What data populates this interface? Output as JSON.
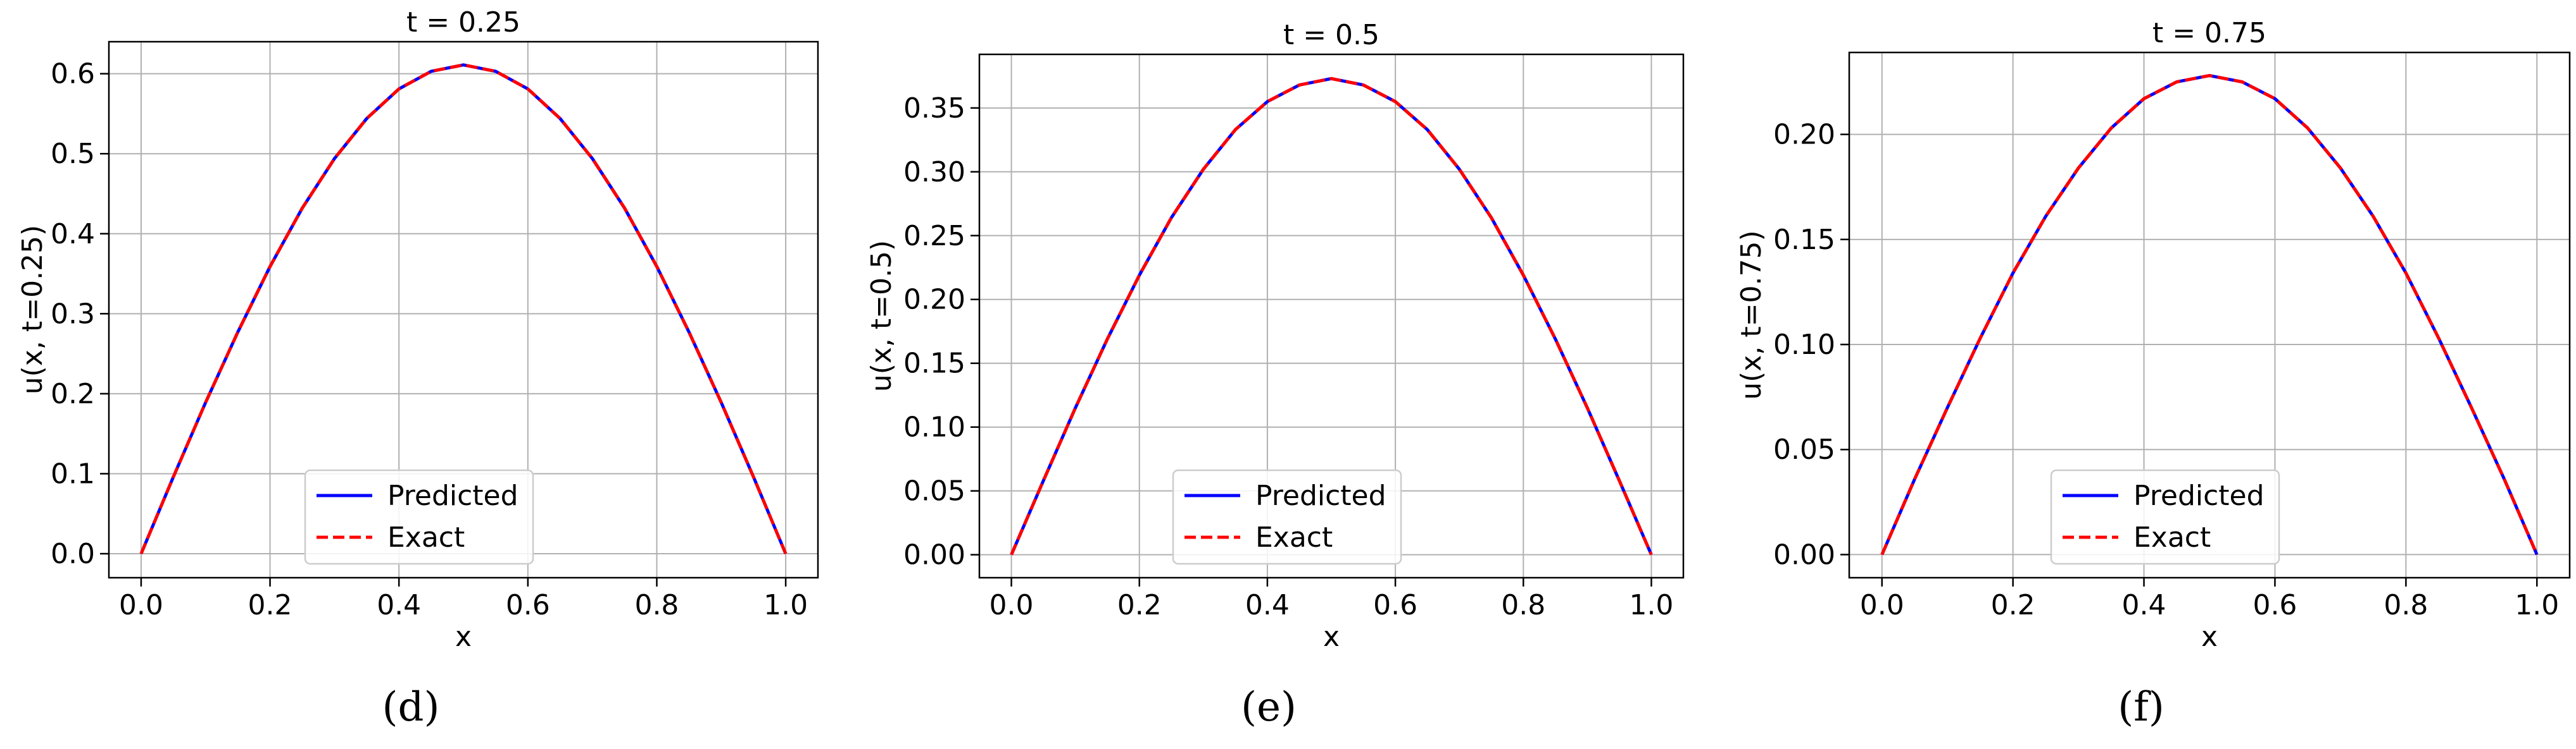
{
  "chart_data": [
    {
      "type": "line",
      "title": "t = 0.25",
      "xlabel": "x",
      "ylabel": "u(x, t=0.25)",
      "caption": "(d)",
      "xlim": [
        -0.05,
        1.05
      ],
      "ylim": [
        -0.03,
        0.64
      ],
      "xticks": [
        0.0,
        0.2,
        0.4,
        0.6,
        0.8,
        1.0
      ],
      "xtick_labels": [
        "0.0",
        "0.2",
        "0.4",
        "0.6",
        "0.8",
        "1.0"
      ],
      "yticks": [
        0.0,
        0.1,
        0.2,
        0.3,
        0.4,
        0.5,
        0.6
      ],
      "ytick_labels": [
        "0.0",
        "0.1",
        "0.2",
        "0.3",
        "0.4",
        "0.5",
        "0.6"
      ],
      "grid": true,
      "legend_position": "lower-center",
      "x": [
        0.0,
        0.05,
        0.1,
        0.15,
        0.2,
        0.25,
        0.3,
        0.35,
        0.4,
        0.45,
        0.5,
        0.55,
        0.6,
        0.65,
        0.7,
        0.75,
        0.8,
        0.85,
        0.9,
        0.95,
        1.0
      ],
      "series": [
        {
          "name": "Predicted",
          "color": "#0000ff",
          "style": "solid",
          "values": [
            0.0,
            0.096,
            0.189,
            0.277,
            0.359,
            0.432,
            0.494,
            0.544,
            0.581,
            0.603,
            0.611,
            0.603,
            0.581,
            0.544,
            0.494,
            0.432,
            0.359,
            0.277,
            0.189,
            0.096,
            0.0
          ]
        },
        {
          "name": "Exact",
          "color": "#ff0000",
          "style": "dashed",
          "values": [
            0.0,
            0.096,
            0.189,
            0.277,
            0.359,
            0.432,
            0.494,
            0.544,
            0.581,
            0.603,
            0.611,
            0.603,
            0.581,
            0.544,
            0.494,
            0.432,
            0.359,
            0.277,
            0.189,
            0.096,
            0.0
          ]
        }
      ]
    },
    {
      "type": "line",
      "title": "t = 0.5",
      "xlabel": "x",
      "ylabel": "u(x, t=0.5)",
      "caption": "(e)",
      "xlim": [
        -0.05,
        1.05
      ],
      "ylim": [
        -0.018,
        0.392
      ],
      "xticks": [
        0.0,
        0.2,
        0.4,
        0.6,
        0.8,
        1.0
      ],
      "xtick_labels": [
        "0.0",
        "0.2",
        "0.4",
        "0.6",
        "0.8",
        "1.0"
      ],
      "yticks": [
        0.0,
        0.05,
        0.1,
        0.15,
        0.2,
        0.25,
        0.3,
        0.35
      ],
      "ytick_labels": [
        "0.00",
        "0.05",
        "0.10",
        "0.15",
        "0.20",
        "0.25",
        "0.30",
        "0.35"
      ],
      "grid": true,
      "legend_position": "lower-center",
      "x": [
        0.0,
        0.05,
        0.1,
        0.15,
        0.2,
        0.25,
        0.3,
        0.35,
        0.4,
        0.45,
        0.5,
        0.55,
        0.6,
        0.65,
        0.7,
        0.75,
        0.8,
        0.85,
        0.9,
        0.95,
        1.0
      ],
      "series": [
        {
          "name": "Predicted",
          "color": "#0000ff",
          "style": "solid",
          "values": [
            0.0,
            0.058,
            0.115,
            0.169,
            0.219,
            0.264,
            0.302,
            0.333,
            0.355,
            0.368,
            0.373,
            0.368,
            0.355,
            0.333,
            0.302,
            0.264,
            0.219,
            0.169,
            0.115,
            0.058,
            0.0
          ]
        },
        {
          "name": "Exact",
          "color": "#ff0000",
          "style": "dashed",
          "values": [
            0.0,
            0.058,
            0.115,
            0.169,
            0.219,
            0.264,
            0.302,
            0.333,
            0.355,
            0.368,
            0.373,
            0.368,
            0.355,
            0.333,
            0.302,
            0.264,
            0.219,
            0.169,
            0.115,
            0.058,
            0.0
          ]
        }
      ]
    },
    {
      "type": "line",
      "title": "t = 0.75",
      "xlabel": "x",
      "ylabel": "u(x, t=0.75)",
      "caption": "(f)",
      "xlim": [
        -0.05,
        1.05
      ],
      "ylim": [
        -0.011,
        0.239
      ],
      "xticks": [
        0.0,
        0.2,
        0.4,
        0.6,
        0.8,
        1.0
      ],
      "xtick_labels": [
        "0.0",
        "0.2",
        "0.4",
        "0.6",
        "0.8",
        "1.0"
      ],
      "yticks": [
        0.0,
        0.05,
        0.1,
        0.15,
        0.2
      ],
      "ytick_labels": [
        "0.00",
        "0.05",
        "0.10",
        "0.15",
        "0.20"
      ],
      "grid": true,
      "legend_position": "lower-center",
      "x": [
        0.0,
        0.05,
        0.1,
        0.15,
        0.2,
        0.25,
        0.3,
        0.35,
        0.4,
        0.45,
        0.5,
        0.55,
        0.6,
        0.65,
        0.7,
        0.75,
        0.8,
        0.85,
        0.9,
        0.95,
        1.0
      ],
      "series": [
        {
          "name": "Predicted",
          "color": "#0000ff",
          "style": "solid",
          "values": [
            0.0,
            0.036,
            0.07,
            0.103,
            0.134,
            0.161,
            0.184,
            0.203,
            0.217,
            0.225,
            0.228,
            0.225,
            0.217,
            0.203,
            0.184,
            0.161,
            0.134,
            0.103,
            0.07,
            0.036,
            0.0
          ]
        },
        {
          "name": "Exact",
          "color": "#ff0000",
          "style": "dashed",
          "values": [
            0.0,
            0.036,
            0.07,
            0.103,
            0.134,
            0.161,
            0.184,
            0.203,
            0.217,
            0.225,
            0.228,
            0.225,
            0.217,
            0.203,
            0.184,
            0.161,
            0.134,
            0.103,
            0.07,
            0.036,
            0.0
          ]
        }
      ]
    }
  ]
}
